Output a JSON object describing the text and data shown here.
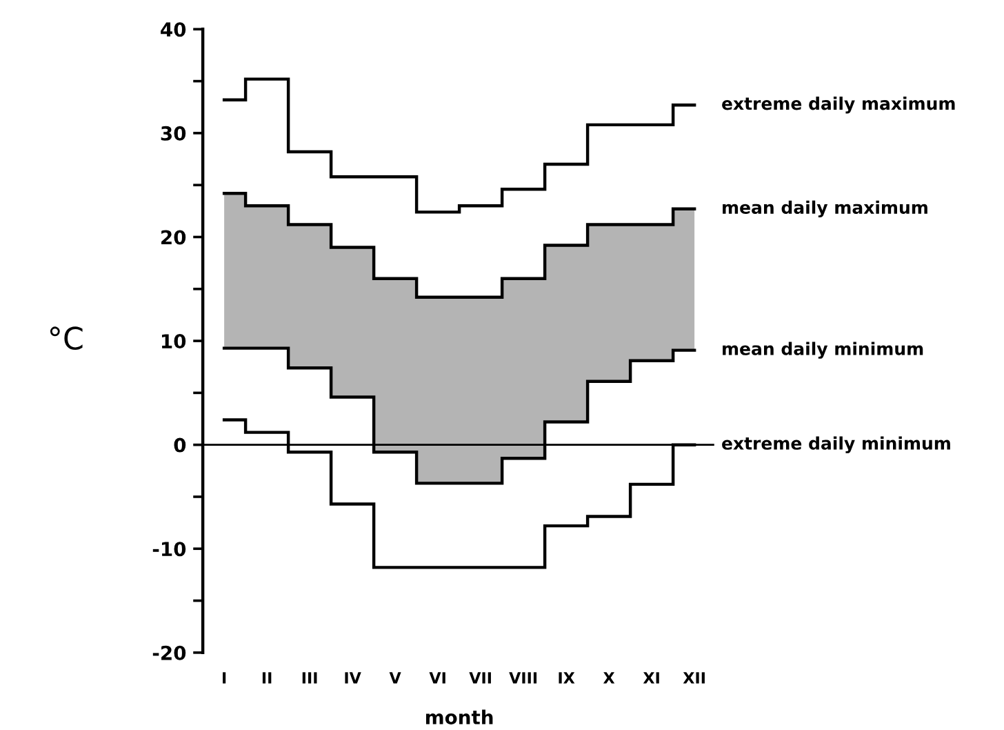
{
  "chart_data": {
    "type": "step",
    "xlabel": "month",
    "ylabel": "°C",
    "categories": [
      "I",
      "II",
      "III",
      "IV",
      "V",
      "VI",
      "VII",
      "VIII",
      "IX",
      "X",
      "XI",
      "XII"
    ],
    "series": [
      {
        "name": "extreme daily maximum",
        "color": "#000000",
        "values": [
          33.2,
          35.2,
          28.2,
          25.8,
          25.8,
          22.4,
          23.0,
          24.6,
          27.0,
          30.8,
          30.8,
          32.7
        ]
      },
      {
        "name": "mean daily maximum",
        "color": "#000000",
        "values": [
          24.2,
          23.0,
          21.2,
          19.0,
          16.0,
          14.2,
          14.2,
          16.0,
          19.2,
          21.2,
          21.2,
          22.7
        ],
        "lower": [
          9.3,
          9.3,
          7.4,
          4.6,
          -0.7,
          -3.7,
          -3.7,
          -1.3,
          2.2,
          6.1,
          8.1,
          9.1
        ],
        "upper": [
          24.2,
          23.0,
          21.2,
          19.0,
          16.0,
          14.2,
          14.2,
          16.0,
          19.2,
          21.2,
          21.2,
          22.7
        ]
      },
      {
        "name": "mean daily minimum",
        "color": "#000000",
        "values": [
          9.3,
          9.3,
          7.4,
          4.6,
          -0.7,
          -3.7,
          -3.7,
          -1.3,
          2.2,
          6.1,
          8.1,
          9.1
        ]
      },
      {
        "name": "extreme daily minimum",
        "color": "#000000",
        "values": [
          2.4,
          1.2,
          -0.7,
          -5.7,
          -11.8,
          -11.8,
          -11.8,
          -11.8,
          -7.8,
          -6.9,
          -3.8,
          0.0
        ]
      }
    ],
    "ylim": [
      -20,
      40
    ],
    "yticks": [
      -20,
      {
        "value": -15,
        "label": null
      },
      -10,
      {
        "value": -5,
        "label": null
      },
      0,
      {
        "value": 5,
        "label": null
      },
      10,
      {
        "value": 15,
        "label": null
      },
      20,
      {
        "value": 25,
        "label": null
      },
      30,
      {
        "value": 35,
        "label": null
      },
      40
    ],
    "ref_lines": [
      {
        "axis": "y",
        "value": 0,
        "color": "#000000"
      }
    ],
    "grid": false,
    "legend": false
  }
}
